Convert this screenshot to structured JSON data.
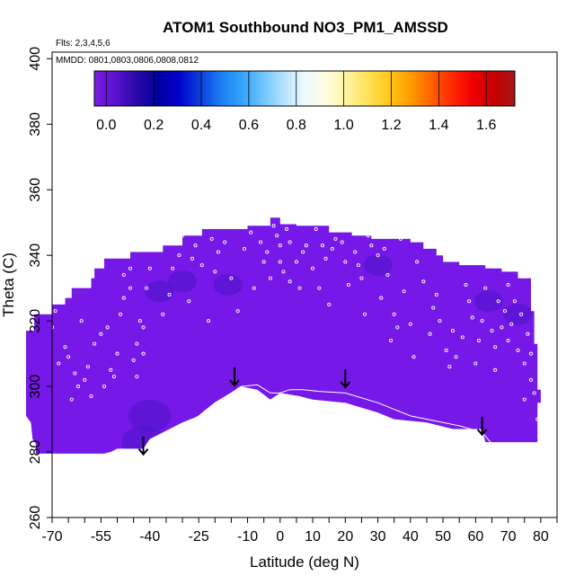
{
  "chart_data": {
    "type": "heatmap",
    "title": "ATOM1 Southbound NO3_PM1_AMSSD",
    "flights_note": "Flts: 2,3,4,5,6",
    "dates_note": "MMDD: 0801,0803,0806,0808,0812",
    "xlabel": "Latitude (deg N)",
    "ylabel": "Theta (C)",
    "xlim": [
      -70,
      85
    ],
    "ylim": [
      260,
      402
    ],
    "x_ticks": [
      -70,
      -65,
      -60,
      -55,
      -50,
      -45,
      -40,
      -35,
      -30,
      -25,
      -20,
      -15,
      -10,
      -5,
      0,
      5,
      10,
      15,
      20,
      25,
      30,
      35,
      40,
      45,
      50,
      55,
      60,
      65,
      70,
      75,
      80,
      85
    ],
    "x_tick_labels": [
      "-70",
      "-55",
      "-40",
      "-25",
      "-10",
      "0",
      "10",
      "20",
      "30",
      "40",
      "50",
      "60",
      "70",
      "80"
    ],
    "x_tick_label_values": [
      -70,
      -55,
      -40,
      -25,
      -10,
      0,
      10,
      20,
      30,
      40,
      50,
      60,
      70,
      80
    ],
    "y_ticks": [
      260,
      280,
      300,
      320,
      340,
      360,
      380,
      400
    ],
    "y_tick_labels": [
      "260",
      "280",
      "300",
      "320",
      "340",
      "360",
      "380",
      "400"
    ],
    "colorbar": {
      "range": [
        -0.05,
        1.72
      ],
      "tick_values": [
        0.0,
        0.2,
        0.4,
        0.6,
        0.8,
        1.0,
        1.2,
        1.4,
        1.6
      ],
      "tick_labels": [
        "0.0",
        "0.2",
        "0.4",
        "0.6",
        "0.8",
        "1.0",
        "1.2",
        "1.4",
        "1.6"
      ],
      "colors": [
        "#7a1fe3",
        "#5a10cf",
        "#2a0aa8",
        "#00009f",
        "#0000cc",
        "#0a3cdc",
        "#1c7df2",
        "#32a2fb",
        "#6cc4ff",
        "#b4e2ff",
        "#eef9ff",
        "#fffde0",
        "#fff2a0",
        "#ffe35a",
        "#ffc71a",
        "#ff9e00",
        "#ff6400",
        "#ff2a00",
        "#f00000",
        "#c80000",
        "#a31818"
      ]
    },
    "field_color": "#7518e8",
    "field_dark_color": "#4a14c4",
    "data_region": {
      "boundary": [
        [
          -75,
          282.5
        ],
        [
          -76,
          284
        ],
        [
          -76.5,
          289
        ],
        [
          -78,
          291
        ],
        [
          -78,
          294
        ],
        [
          -78,
          297
        ],
        [
          -78,
          300
        ],
        [
          -78,
          303
        ],
        [
          -78,
          306
        ],
        [
          -78,
          308
        ],
        [
          -78,
          311
        ],
        [
          -78,
          314
        ],
        [
          -78,
          317
        ],
        [
          -75.5,
          317
        ],
        [
          -75.5,
          322
        ],
        [
          -70,
          322
        ],
        [
          -70,
          325
        ],
        [
          -66,
          325
        ],
        [
          -66,
          327
        ],
        [
          -64,
          327
        ],
        [
          -64,
          330
        ],
        [
          -58,
          330
        ],
        [
          -58,
          333
        ],
        [
          -57,
          333
        ],
        [
          -57,
          336
        ],
        [
          -54,
          336
        ],
        [
          -54,
          339
        ],
        [
          -46,
          339
        ],
        [
          -46,
          341
        ],
        [
          -36,
          341
        ],
        [
          -36,
          343
        ],
        [
          -30,
          343
        ],
        [
          -30,
          346
        ],
        [
          -24,
          346
        ],
        [
          -24,
          348
        ],
        [
          -10,
          348
        ],
        [
          -10,
          349
        ],
        [
          -3,
          349
        ],
        [
          -3,
          351.5
        ],
        [
          0,
          351.5
        ],
        [
          0,
          349.5
        ],
        [
          5,
          349.5
        ],
        [
          5,
          349
        ],
        [
          15,
          349
        ],
        [
          15,
          347
        ],
        [
          22,
          347
        ],
        [
          22,
          346
        ],
        [
          28,
          346
        ],
        [
          28,
          345
        ],
        [
          40,
          345
        ],
        [
          40,
          344
        ],
        [
          44,
          344
        ],
        [
          44,
          342
        ],
        [
          48,
          342
        ],
        [
          48,
          340
        ],
        [
          50,
          340
        ],
        [
          50,
          338
        ],
        [
          55,
          338
        ],
        [
          55,
          337
        ],
        [
          63,
          337
        ],
        [
          63,
          336
        ],
        [
          68,
          336
        ],
        [
          68,
          335
        ],
        [
          73,
          335
        ],
        [
          73,
          333
        ],
        [
          77,
          333
        ],
        [
          77,
          323
        ],
        [
          78,
          323
        ],
        [
          78,
          313
        ],
        [
          79,
          313
        ],
        [
          79,
          299
        ],
        [
          80,
          299
        ],
        [
          80,
          295
        ],
        [
          79,
          295
        ],
        [
          79,
          283
        ],
        [
          63,
          283
        ],
        [
          62,
          287
        ],
        [
          53,
          287
        ],
        [
          45,
          289
        ],
        [
          35,
          290
        ],
        [
          30,
          292
        ],
        [
          20,
          295
        ],
        [
          10,
          296
        ],
        [
          6,
          297
        ],
        [
          0,
          298
        ],
        [
          -3,
          296
        ],
        [
          -7,
          299
        ],
        [
          -12,
          300
        ],
        [
          -15,
          298
        ],
        [
          -20,
          295
        ],
        [
          -25,
          291
        ],
        [
          -30,
          289
        ],
        [
          -36,
          286
        ],
        [
          -40,
          284
        ],
        [
          -42,
          281
        ],
        [
          -47,
          281
        ],
        [
          -50,
          281
        ],
        [
          -52,
          280
        ],
        [
          -54,
          279.5
        ],
        [
          -75,
          279.5
        ]
      ],
      "dark_patches": [
        {
          "lat": -42,
          "theta": 283,
          "size": 3
        },
        {
          "lat": -40,
          "theta": 291,
          "size": 3
        },
        {
          "lat": -37,
          "theta": 329,
          "size": 2
        },
        {
          "lat": -16,
          "theta": 331,
          "size": 2
        },
        {
          "lat": -30,
          "theta": 332,
          "size": 2
        },
        {
          "lat": 30,
          "theta": 337,
          "size": 2
        },
        {
          "lat": 64,
          "theta": 326,
          "size": 2
        },
        {
          "lat": 73,
          "theta": 322,
          "size": 2
        }
      ]
    },
    "sample_points": [
      [
        -76,
        298
      ],
      [
        -75,
        302
      ],
      [
        -74,
        307
      ],
      [
        -73,
        311
      ],
      [
        -73,
        315
      ],
      [
        -71,
        321
      ],
      [
        -69,
        323
      ],
      [
        -66,
        312
      ],
      [
        -65,
        309
      ],
      [
        -63,
        304
      ],
      [
        -62,
        300
      ],
      [
        -60,
        302
      ],
      [
        -59,
        306
      ],
      [
        -57,
        313
      ],
      [
        -54,
        300
      ],
      [
        -53,
        318
      ],
      [
        -52,
        305
      ],
      [
        -51,
        303
      ],
      [
        -49,
        322
      ],
      [
        -48,
        327
      ],
      [
        -48,
        334
      ],
      [
        -46,
        330
      ],
      [
        -46,
        336
      ],
      [
        -45,
        308
      ],
      [
        -44,
        313
      ],
      [
        -42,
        310
      ],
      [
        -42,
        318
      ],
      [
        -41,
        330
      ],
      [
        -40,
        336
      ],
      [
        -38,
        343
      ],
      [
        -34,
        328
      ],
      [
        -33,
        336
      ],
      [
        -31,
        340
      ],
      [
        -30,
        346
      ],
      [
        -27,
        339
      ],
      [
        -26,
        343
      ],
      [
        -24,
        337
      ],
      [
        -21,
        345
      ],
      [
        -19,
        341
      ],
      [
        -17,
        344
      ],
      [
        -15,
        333
      ],
      [
        -13,
        323
      ],
      [
        -11,
        342
      ],
      [
        -9,
        347
      ],
      [
        -6,
        344
      ],
      [
        -5,
        338
      ],
      [
        -4,
        341
      ],
      [
        -3,
        333
      ],
      [
        -2,
        349
      ],
      [
        -1,
        346
      ],
      [
        0,
        343
      ],
      [
        0,
        338
      ],
      [
        1,
        335
      ],
      [
        2,
        348
      ],
      [
        3,
        344
      ],
      [
        3,
        332
      ],
      [
        5,
        338
      ],
      [
        7,
        341
      ],
      [
        8,
        343
      ],
      [
        10,
        336
      ],
      [
        11,
        348
      ],
      [
        13,
        343
      ],
      [
        14,
        339
      ],
      [
        16,
        342
      ],
      [
        17,
        345
      ],
      [
        19,
        344
      ],
      [
        20,
        338
      ],
      [
        21,
        331
      ],
      [
        23,
        341
      ],
      [
        24,
        337
      ],
      [
        25,
        333
      ],
      [
        27,
        346
      ],
      [
        28,
        343
      ],
      [
        30,
        340
      ],
      [
        31,
        327
      ],
      [
        32,
        342
      ],
      [
        34,
        314
      ],
      [
        35,
        322
      ],
      [
        37,
        345
      ],
      [
        38,
        329
      ],
      [
        40,
        319
      ],
      [
        42,
        338
      ],
      [
        44,
        332
      ],
      [
        46,
        316
      ],
      [
        47,
        324
      ],
      [
        49,
        320
      ],
      [
        51,
        311
      ],
      [
        52,
        306
      ],
      [
        54,
        309
      ],
      [
        56,
        315
      ],
      [
        58,
        326
      ],
      [
        59,
        321
      ],
      [
        61,
        314
      ],
      [
        62,
        320
      ],
      [
        63,
        330
      ],
      [
        65,
        317
      ],
      [
        66,
        312
      ],
      [
        67,
        326
      ],
      [
        68,
        318
      ],
      [
        69,
        323
      ],
      [
        70,
        314
      ],
      [
        71,
        319
      ],
      [
        72,
        326
      ],
      [
        73,
        311
      ],
      [
        74,
        322
      ],
      [
        75,
        307
      ],
      [
        76,
        316
      ],
      [
        77,
        302
      ],
      [
        77,
        310
      ],
      [
        78,
        298
      ],
      [
        79,
        290
      ],
      [
        -70,
        318
      ],
      [
        -68,
        307
      ],
      [
        -64,
        296
      ],
      [
        -58,
        297
      ],
      [
        -55,
        316
      ],
      [
        -50,
        310
      ],
      [
        -43,
        320
      ],
      [
        -36,
        322
      ],
      [
        -28,
        326
      ],
      [
        -22,
        320
      ],
      [
        -8,
        330
      ],
      [
        6,
        330
      ],
      [
        15,
        325
      ],
      [
        26,
        322
      ],
      [
        36,
        318
      ],
      [
        41,
        309
      ],
      [
        53,
        317
      ],
      [
        57,
        331
      ],
      [
        60,
        307
      ],
      [
        66,
        305
      ],
      [
        -73,
        296
      ],
      [
        -61,
        320
      ],
      [
        -44,
        303
      ],
      [
        -20,
        335
      ],
      [
        12,
        330
      ],
      [
        33,
        334
      ],
      [
        48,
        328
      ],
      [
        70,
        331
      ],
      [
        75,
        296
      ],
      [
        -76,
        294
      ]
    ],
    "arrows": [
      {
        "lat": -42,
        "theta": 282
      },
      {
        "lat": -14,
        "theta": 303
      },
      {
        "lat": 20,
        "theta": 302.5
      },
      {
        "lat": 62,
        "theta": 288
      }
    ],
    "contour": [
      [
        -40,
        281
      ],
      [
        -36,
        284
      ],
      [
        -30,
        288
      ],
      [
        -25,
        291
      ],
      [
        -20,
        295
      ],
      [
        -15,
        298
      ],
      [
        -12,
        300
      ],
      [
        -7,
        300.5
      ],
      [
        -3,
        298
      ],
      [
        0,
        298
      ],
      [
        3,
        299
      ],
      [
        7,
        299
      ],
      [
        12,
        298.5
      ],
      [
        20,
        298
      ],
      [
        30,
        295
      ],
      [
        40,
        291
      ],
      [
        50,
        289
      ],
      [
        55,
        288
      ],
      [
        62,
        286
      ],
      [
        65,
        282.5
      ]
    ]
  }
}
